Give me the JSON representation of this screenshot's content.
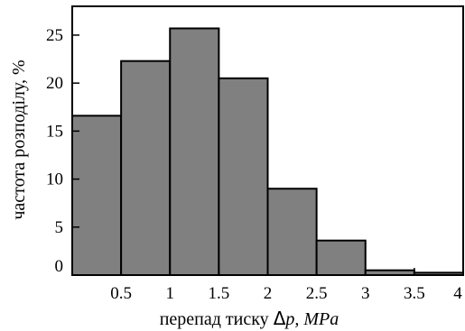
{
  "chart_data": {
    "type": "bar",
    "style": "histogram",
    "bin_edges": [
      0,
      0.5,
      1,
      1.5,
      2,
      2.5,
      3,
      3.5,
      4
    ],
    "values": [
      16.6,
      22.3,
      25.7,
      20.5,
      9.0,
      3.6,
      0.5,
      0.25
    ],
    "xlim": [
      0,
      4
    ],
    "ylim": [
      0,
      28
    ],
    "x_ticks": [
      "0.5",
      "1",
      "1.5",
      "2",
      "2.5",
      "3",
      "3.5",
      "4"
    ],
    "y_ticks": [
      "0",
      "5",
      "10",
      "15",
      "20",
      "25"
    ],
    "xlabel_text": "перепад тиску ",
    "xlabel_delta": "Δ",
    "xlabel_var": "p, MPa",
    "ylabel": "частота розподілу, %",
    "bar_color": "#808080",
    "edge_color": "#000000",
    "grid": false,
    "legend": false
  }
}
